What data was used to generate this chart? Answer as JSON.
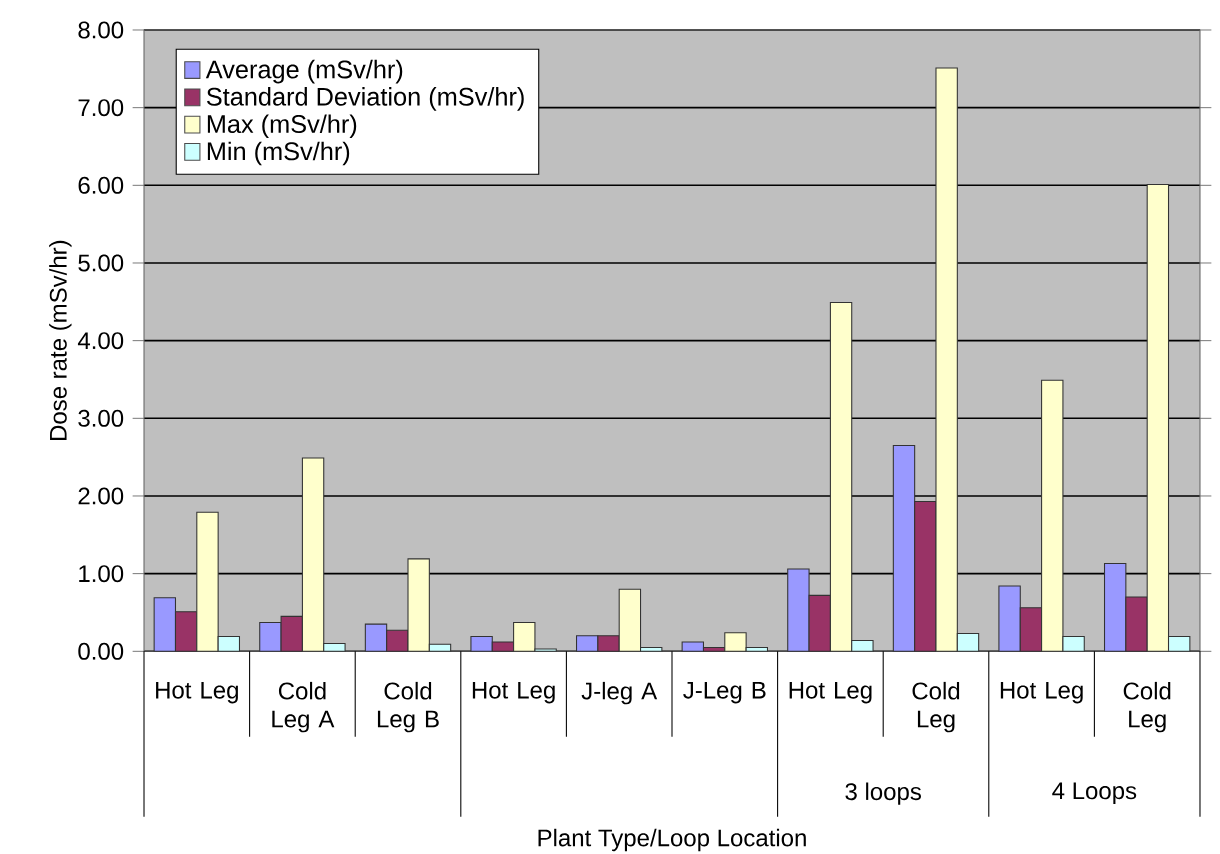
{
  "chart_data": {
    "type": "bar",
    "xlabel": "Plant Type/Loop Location",
    "ylabel": "Dose rate (mSv/hr)",
    "categories": [
      "Hot Leg",
      "Cold Leg A",
      "Cold Leg B",
      "Hot Leg",
      "J-leg A",
      "J-Leg B",
      "Hot Leg",
      "Cold Leg",
      "Hot Leg",
      "Cold Leg"
    ],
    "series": [
      {
        "name": "Average (mSv/hr)",
        "color": "#9999ff",
        "values": [
          0.69,
          0.37,
          0.35,
          0.19,
          0.2,
          0.12,
          1.06,
          2.65,
          0.84,
          1.13
        ]
      },
      {
        "name": "Standard Deviation (mSv/hr)",
        "color": "#993366",
        "values": [
          0.51,
          0.45,
          0.27,
          0.12,
          0.2,
          0.05,
          0.72,
          1.93,
          0.56,
          0.7
        ]
      },
      {
        "name": "Max (mSv/hr)",
        "color": "#ffffcc",
        "values": [
          1.79,
          2.49,
          1.19,
          0.37,
          0.8,
          0.24,
          4.49,
          7.51,
          3.49,
          6.01
        ]
      },
      {
        "name": "Min (mSv/hr)",
        "color": "#ccffff",
        "values": [
          0.19,
          0.1,
          0.09,
          0.03,
          0.05,
          0.05,
          0.14,
          0.23,
          0.19,
          0.19
        ]
      }
    ],
    "ylim": [
      0,
      8
    ],
    "yticks": [
      {
        "value": 0,
        "label": "0.00"
      },
      {
        "value": 1,
        "label": "1.00"
      },
      {
        "value": 2,
        "label": "2.00"
      },
      {
        "value": 3,
        "label": "3.00"
      },
      {
        "value": 4,
        "label": "4.00"
      },
      {
        "value": 5,
        "label": "5.00"
      },
      {
        "value": 6,
        "label": "6.00"
      },
      {
        "value": 7,
        "label": "7.00"
      },
      {
        "value": 8,
        "label": "8.00"
      }
    ],
    "grid": "y",
    "legend": "top left",
    "annotations": [
      "3 loops",
      "4 Loops"
    ]
  }
}
